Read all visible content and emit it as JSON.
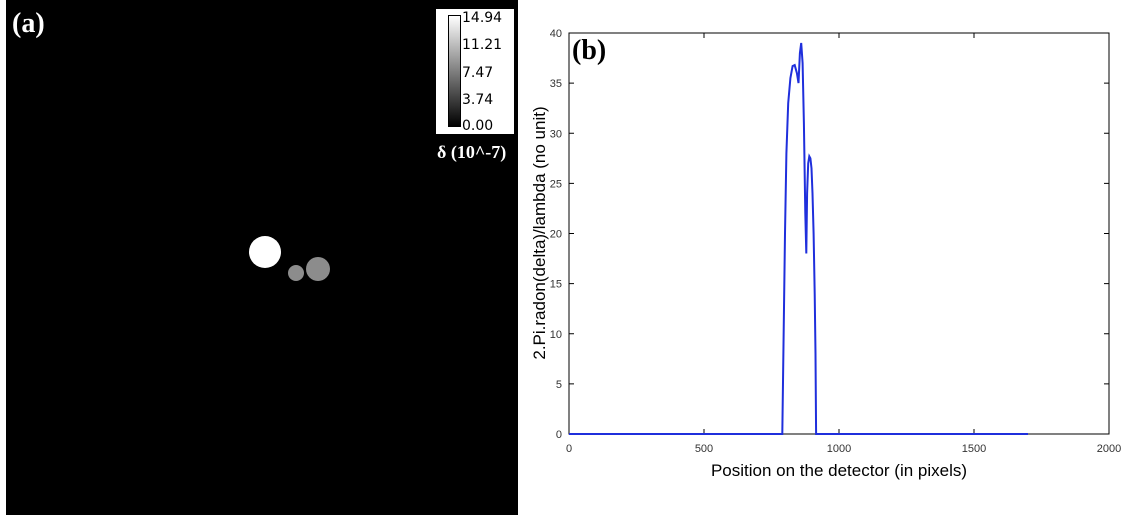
{
  "panel_a": {
    "letter": "(a)",
    "colorbar": {
      "ticks": [
        "14.94",
        "11.21",
        "7.47",
        "3.74",
        "0.00"
      ],
      "label": "δ (10^-7)",
      "min": 0.0,
      "max": 14.94
    },
    "objects": [
      {
        "name": "disc-large-bright",
        "value": 14.94,
        "color": "#ffffff"
      },
      {
        "name": "disc-small-gray",
        "value": 7.47,
        "color": "#8c8c8c"
      },
      {
        "name": "disc-medium-gray",
        "value": 7.47,
        "color": "#8c8c8c"
      }
    ]
  },
  "chart_data": {
    "type": "line",
    "letter": "(b)",
    "title": "",
    "xlabel": "Position on the detector (in pixels)",
    "ylabel": "2.Pi.radon(delta)/lambda (no unit)",
    "xlim": [
      0,
      2000
    ],
    "ylim": [
      0,
      40
    ],
    "xticks": [
      "0",
      "500",
      "1000",
      "1500",
      "2000"
    ],
    "yticks": [
      "0",
      "5",
      "10",
      "15",
      "20",
      "25",
      "30",
      "35",
      "40"
    ],
    "grid": false,
    "line_color": "#1f2fdc",
    "series": [
      {
        "x": [
          0,
          790,
          800,
          805,
          812,
          820,
          828,
          836,
          844,
          850,
          855,
          860,
          865,
          870,
          875,
          879,
          882,
          886,
          890,
          894,
          898,
          902,
          906,
          910,
          913,
          915,
          920,
          1700
        ],
        "y": [
          0,
          0,
          20,
          28,
          33,
          35.5,
          36.7,
          36.8,
          36,
          35,
          38,
          39,
          37,
          31,
          22,
          18,
          24,
          27,
          27.7,
          27.5,
          26.5,
          24,
          20,
          14,
          8,
          0,
          0,
          0
        ]
      }
    ]
  }
}
